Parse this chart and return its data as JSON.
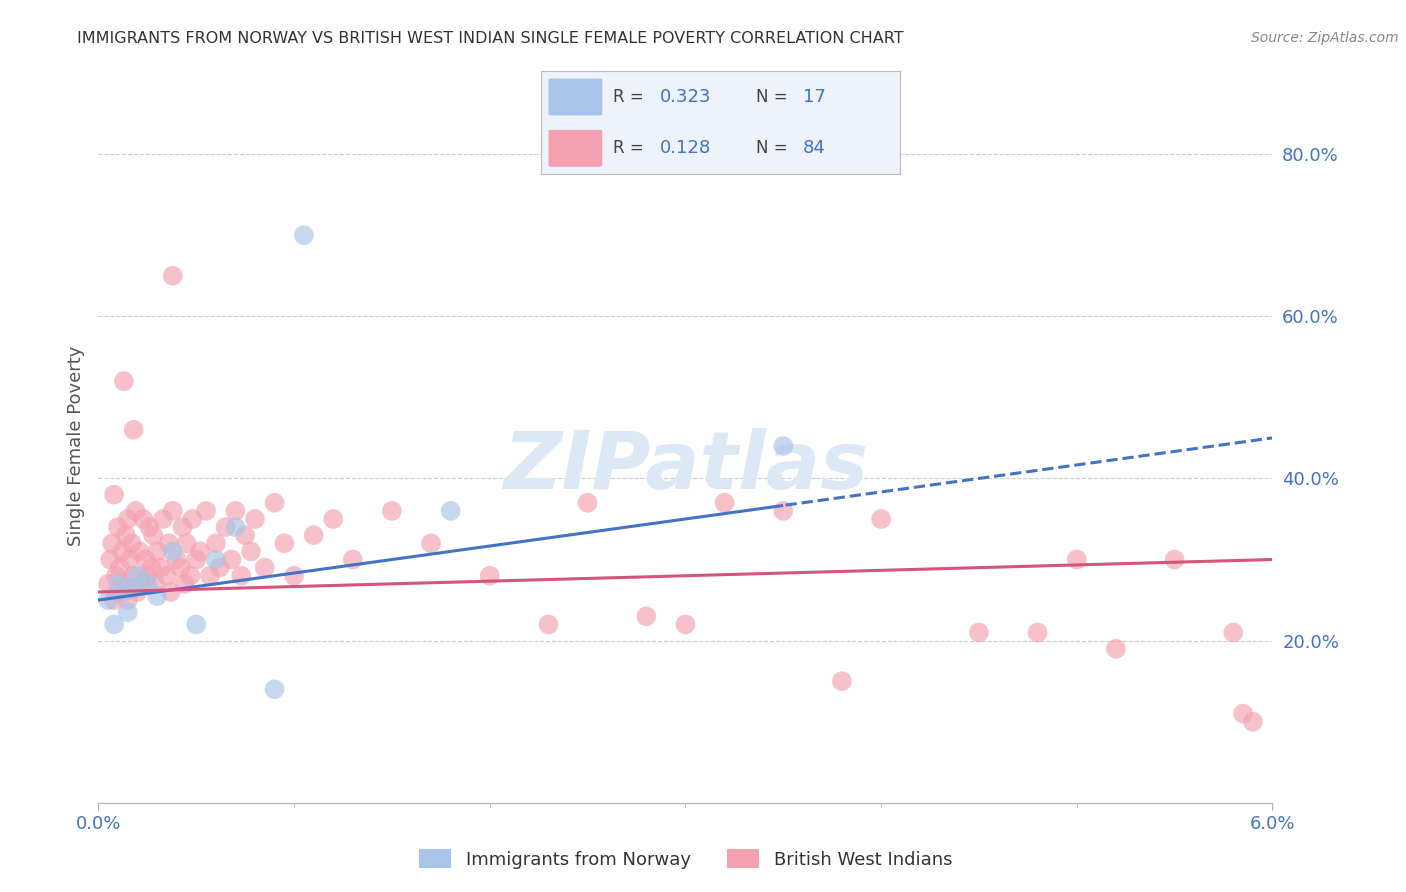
{
  "title": "IMMIGRANTS FROM NORWAY VS BRITISH WEST INDIAN SINGLE FEMALE POVERTY CORRELATION CHART",
  "source": "Source: ZipAtlas.com",
  "ylabel": "Single Female Poverty",
  "right_yticks": [
    20.0,
    40.0,
    60.0,
    80.0
  ],
  "x_min": 0.0,
  "x_max": 6.0,
  "y_min": 0.0,
  "y_max": 88.0,
  "norway_R": 0.323,
  "norway_N": 17,
  "bwi_R": 0.128,
  "bwi_N": 84,
  "norway_color": "#a8c4e8",
  "bwi_color": "#f4a0b0",
  "norway_line_color": "#4472c4",
  "bwi_line_color": "#d4547a",
  "background_color": "#ffffff",
  "grid_color": "#cccccc",
  "axis_label_color": "#4472c4",
  "watermark_color": "#dce8f5",
  "norway_x": [
    0.05,
    0.08,
    0.1,
    0.13,
    0.15,
    0.18,
    0.2,
    0.25,
    0.3,
    0.38,
    0.5,
    0.6,
    0.7,
    0.9,
    1.05,
    1.8,
    3.5
  ],
  "norway_y": [
    25.0,
    22.0,
    27.0,
    26.0,
    23.5,
    26.5,
    28.0,
    27.0,
    25.5,
    31.0,
    22.0,
    30.0,
    34.0,
    14.0,
    70.0,
    36.0,
    44.0
  ],
  "bwi_x": [
    0.05,
    0.06,
    0.07,
    0.08,
    0.09,
    0.1,
    0.1,
    0.11,
    0.12,
    0.13,
    0.14,
    0.15,
    0.15,
    0.16,
    0.17,
    0.18,
    0.19,
    0.2,
    0.21,
    0.22,
    0.23,
    0.24,
    0.25,
    0.26,
    0.27,
    0.28,
    0.29,
    0.3,
    0.32,
    0.33,
    0.35,
    0.36,
    0.37,
    0.38,
    0.4,
    0.42,
    0.43,
    0.44,
    0.45,
    0.47,
    0.48,
    0.5,
    0.52,
    0.55,
    0.57,
    0.6,
    0.62,
    0.65,
    0.68,
    0.7,
    0.73,
    0.75,
    0.78,
    0.8,
    0.85,
    0.9,
    0.95,
    1.0,
    1.1,
    1.2,
    1.3,
    1.5,
    1.7,
    2.0,
    2.3,
    2.5,
    2.8,
    3.0,
    3.2,
    3.5,
    3.8,
    4.0,
    4.5,
    4.8,
    5.0,
    5.2,
    5.5,
    5.8,
    5.85,
    5.9,
    0.08,
    0.13,
    0.18,
    0.38
  ],
  "bwi_y": [
    27.0,
    30.0,
    32.0,
    25.0,
    28.0,
    26.0,
    34.0,
    29.0,
    31.0,
    27.0,
    33.0,
    25.0,
    35.0,
    30.0,
    32.0,
    28.0,
    36.0,
    26.0,
    31.0,
    27.0,
    35.0,
    30.0,
    28.0,
    34.0,
    29.0,
    33.0,
    27.0,
    31.0,
    29.0,
    35.0,
    28.0,
    32.0,
    26.0,
    36.0,
    30.0,
    29.0,
    34.0,
    27.0,
    32.0,
    28.0,
    35.0,
    30.0,
    31.0,
    36.0,
    28.0,
    32.0,
    29.0,
    34.0,
    30.0,
    36.0,
    28.0,
    33.0,
    31.0,
    35.0,
    29.0,
    37.0,
    32.0,
    28.0,
    33.0,
    35.0,
    30.0,
    36.0,
    32.0,
    28.0,
    22.0,
    37.0,
    23.0,
    22.0,
    37.0,
    36.0,
    15.0,
    35.0,
    21.0,
    21.0,
    30.0,
    19.0,
    30.0,
    21.0,
    11.0,
    10.0,
    38.0,
    52.0,
    46.0,
    65.0
  ]
}
